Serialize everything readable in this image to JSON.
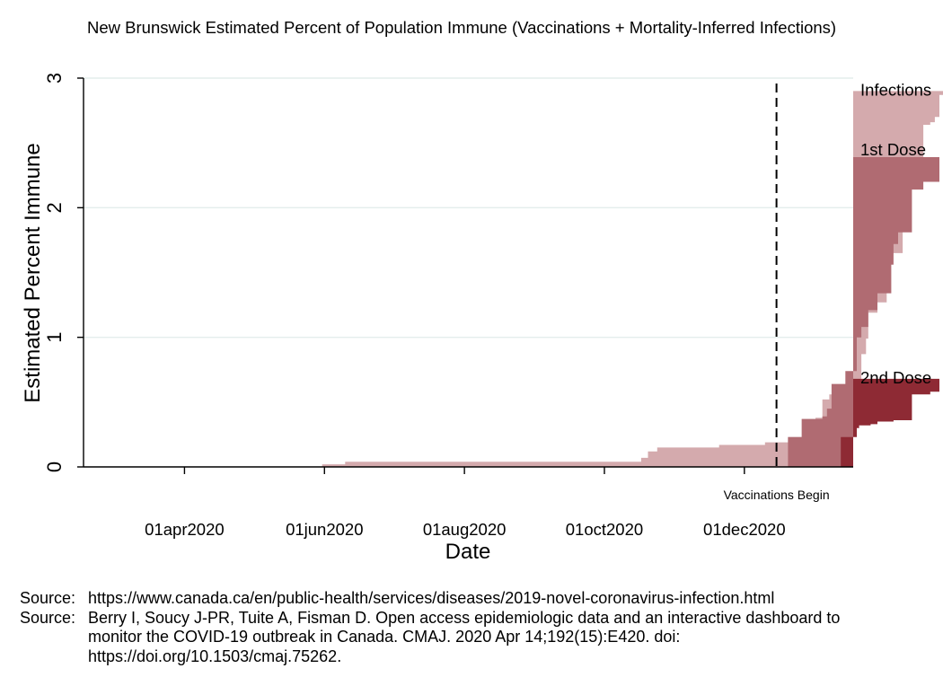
{
  "chart_data": {
    "type": "area",
    "title": "New Brunswick Estimated Percent of Population Immune (Vaccinations + Mortality-Inferred Infections)",
    "xlabel": "Date",
    "ylabel": "Estimated Percent Immune",
    "ylim": [
      0,
      3
    ],
    "yticks": [
      "0",
      "1",
      "2",
      "3"
    ],
    "xticks": [
      "01apr2020",
      "01jun2020",
      "01aug2020",
      "01oct2020",
      "01dec2020"
    ],
    "grid": "horizontal",
    "vline": {
      "date": "2020-12-15",
      "label": "Vaccinations Begin"
    },
    "series_labels": [
      "Infections",
      "1st Dose",
      "2nd Dose"
    ],
    "colors": {
      "infections": "#d4aaad",
      "first_dose": "#b06b72",
      "second_dose": "#8e2a34",
      "gridline": "#e4eeec"
    },
    "series": [
      {
        "name": "Infections",
        "points": [
          [
            "2020-03-01",
            0
          ],
          [
            "2020-05-31",
            0.02
          ],
          [
            "2020-06-10",
            0.04
          ],
          [
            "2020-10-17",
            0.07
          ],
          [
            "2020-10-20",
            0.12
          ],
          [
            "2020-10-24",
            0.15
          ],
          [
            "2020-11-20",
            0.17
          ],
          [
            "2020-12-10",
            0.19
          ],
          [
            "2020-12-20",
            0.23
          ],
          [
            "2020-12-26",
            0.37
          ],
          [
            "2021-01-01",
            0.38
          ],
          [
            "2021-01-04",
            0.52
          ],
          [
            "2021-01-07",
            0.56
          ],
          [
            "2021-01-14",
            0.57
          ],
          [
            "2021-01-19",
            0.65
          ],
          [
            "2021-01-21",
            0.87
          ],
          [
            "2021-01-23",
            0.99
          ],
          [
            "2021-01-24",
            1.19
          ],
          [
            "2021-01-28",
            1.27
          ],
          [
            "2021-02-01",
            1.59
          ],
          [
            "2021-02-03",
            1.65
          ],
          [
            "2021-02-08",
            2.15
          ],
          [
            "2021-02-10",
            2.19
          ],
          [
            "2021-02-12",
            2.26
          ],
          [
            "2021-02-17",
            2.64
          ],
          [
            "2021-02-20",
            2.66
          ],
          [
            "2021-02-22",
            2.7
          ],
          [
            "2021-02-24",
            2.87
          ],
          [
            "2021-02-26",
            2.9
          ]
        ]
      },
      {
        "name": "1st Dose",
        "points": [
          [
            "2020-12-16",
            0
          ],
          [
            "2020-12-20",
            0.23
          ],
          [
            "2020-12-26",
            0.37
          ],
          [
            "2021-01-04",
            0.39
          ],
          [
            "2021-01-06",
            0.45
          ],
          [
            "2021-01-08",
            0.64
          ],
          [
            "2021-01-14",
            0.74
          ],
          [
            "2021-01-19",
            1.0
          ],
          [
            "2021-01-21",
            1.08
          ],
          [
            "2021-01-24",
            1.21
          ],
          [
            "2021-01-28",
            1.34
          ],
          [
            "2021-02-03",
            1.56
          ],
          [
            "2021-02-04",
            1.72
          ],
          [
            "2021-02-06",
            1.81
          ],
          [
            "2021-02-12",
            2.14
          ],
          [
            "2021-02-17",
            2.2
          ],
          [
            "2021-02-24",
            2.39
          ]
        ]
      },
      {
        "name": "2nd Dose",
        "points": [
          [
            "2021-01-11",
            0
          ],
          [
            "2021-01-12",
            0.23
          ],
          [
            "2021-01-19",
            0.3
          ],
          [
            "2021-01-20",
            0.32
          ],
          [
            "2021-01-25",
            0.33
          ],
          [
            "2021-01-28",
            0.35
          ],
          [
            "2021-02-04",
            0.36
          ],
          [
            "2021-02-12",
            0.56
          ],
          [
            "2021-02-20",
            0.58
          ],
          [
            "2021-02-24",
            0.68
          ]
        ]
      }
    ]
  },
  "source_label": "Source:",
  "sources": [
    "https://www.canada.ca/en/public-health/services/diseases/2019-novel-coronavirus-infection.html",
    "Berry I, Soucy J-PR, Tuite A, Fisman D. Open access epidemiologic data and an interactive dashboard to monitor the COVID-19 outbreak in Canada. CMAJ. 2020 Apr 14;192(15):E420. doi: https://doi.org/10.1503/cmaj.75262."
  ]
}
